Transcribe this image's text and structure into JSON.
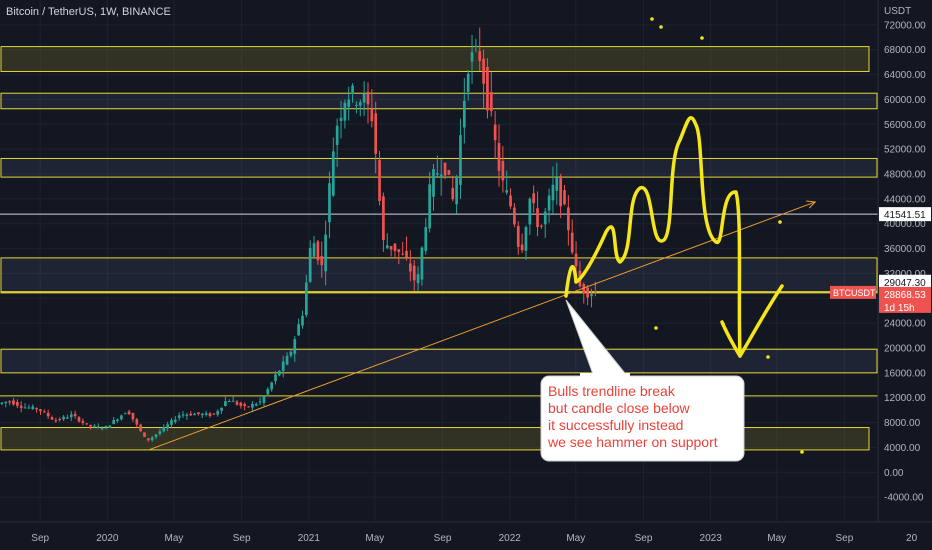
{
  "header": {
    "title": "Bitcoin / TetherUS, 1W, BINANCE"
  },
  "colors": {
    "background": "#131722",
    "grid": "#1e222d",
    "up": "#26a69a",
    "down": "#ef5350",
    "zone_line": "#e8d833",
    "trendline": "#f0a030",
    "drawing": "#f5e61b",
    "label_bg": "#ef5350",
    "callout_text": "#e8433a",
    "axis_text": "#b2b5be"
  },
  "chart_data": {
    "type": "candlestick",
    "symbol": "BTCUSDT",
    "interval": "1W",
    "y_axis": {
      "unit": "USDT",
      "range": [
        -8000,
        76000
      ],
      "ticks": [
        -4000,
        0,
        4000,
        8000,
        12000,
        16000,
        20000,
        24000,
        28000,
        32000,
        36000,
        40000,
        44000,
        48000,
        52000,
        56000,
        60000,
        64000,
        68000,
        72000
      ],
      "tick_labels": [
        "-4000.00",
        "0.00",
        "4000.00",
        "8000.00",
        "12000.00",
        "16000.00",
        "20000.00",
        "24000.00",
        "28000.00",
        "32000.00",
        "36000.00",
        "40000.00",
        "44000.00",
        "48000.00",
        "52000.00",
        "56000.00",
        "60000.00",
        "64000.00",
        "68000.00",
        "72000.00"
      ]
    },
    "x_axis": {
      "range": [
        "2019-06-20",
        "2023-11-01"
      ],
      "ticks": [
        {
          "label": "Sep",
          "date": "2019-09-01"
        },
        {
          "label": "2020",
          "date": "2020-01-01"
        },
        {
          "label": "May",
          "date": "2020-05-01"
        },
        {
          "label": "Sep",
          "date": "2020-09-01"
        },
        {
          "label": "2021",
          "date": "2021-01-01"
        },
        {
          "label": "May",
          "date": "2021-05-01"
        },
        {
          "label": "Sep",
          "date": "2021-09-01"
        },
        {
          "label": "2022",
          "date": "2022-01-01"
        },
        {
          "label": "May",
          "date": "2022-05-01"
        },
        {
          "label": "Sep",
          "date": "2022-09-01"
        },
        {
          "label": "2023",
          "date": "2023-01-01"
        },
        {
          "label": "May",
          "date": "2023-05-01"
        },
        {
          "label": "Sep",
          "date": "2023-09-01"
        },
        {
          "label": "20",
          "date": "2024-01-01"
        }
      ]
    },
    "price_path": [
      [
        "2019-06-20",
        11000
      ],
      [
        "2019-07-10",
        11500
      ],
      [
        "2019-08-05",
        10500
      ],
      [
        "2019-09-01",
        10200
      ],
      [
        "2019-10-01",
        8300
      ],
      [
        "2019-11-01",
        9200
      ],
      [
        "2019-12-01",
        7400
      ],
      [
        "2020-01-01",
        7200
      ],
      [
        "2020-02-10",
        10000
      ],
      [
        "2020-03-16",
        5000
      ],
      [
        "2020-04-15",
        7000
      ],
      [
        "2020-05-15",
        9300
      ],
      [
        "2020-06-15",
        9400
      ],
      [
        "2020-07-15",
        9200
      ],
      [
        "2020-08-10",
        11800
      ],
      [
        "2020-09-10",
        10400
      ],
      [
        "2020-10-10",
        11400
      ],
      [
        "2020-11-05",
        15500
      ],
      [
        "2020-12-01",
        19000
      ],
      [
        "2020-12-25",
        26000
      ],
      [
        "2021-01-10",
        38000
      ],
      [
        "2021-01-28",
        33000
      ],
      [
        "2021-02-21",
        55000
      ],
      [
        "2021-03-13",
        61000
      ],
      [
        "2021-04-14",
        60000
      ],
      [
        "2021-05-01",
        57000
      ],
      [
        "2021-05-19",
        37000
      ],
      [
        "2021-06-10",
        36000
      ],
      [
        "2021-07-01",
        34000
      ],
      [
        "2021-07-20",
        30000
      ],
      [
        "2021-08-15",
        47000
      ],
      [
        "2021-09-07",
        50000
      ],
      [
        "2021-09-25",
        43000
      ],
      [
        "2021-10-20",
        66000
      ],
      [
        "2021-11-10",
        67500
      ],
      [
        "2021-12-01",
        57000
      ],
      [
        "2021-12-20",
        47000
      ],
      [
        "2022-01-10",
        42000
      ],
      [
        "2022-01-24",
        35000
      ],
      [
        "2022-02-10",
        44000
      ],
      [
        "2022-03-01",
        39000
      ],
      [
        "2022-03-29",
        47000
      ],
      [
        "2022-04-20",
        40000
      ],
      [
        "2022-05-10",
        30000
      ],
      [
        "2022-05-25",
        29000
      ],
      [
        "2022-06-05",
        29000
      ]
    ],
    "zones": [
      {
        "low": 64500,
        "high": 68500,
        "boxed": true
      },
      {
        "low": 58500,
        "high": 61000
      },
      {
        "low": 47500,
        "high": 50500
      },
      {
        "low": 41541.51,
        "high": 41541.51
      },
      {
        "low": 29047.3,
        "high": 34500
      },
      {
        "low": 28868.53,
        "high": 29047.3
      },
      {
        "low": 16000,
        "high": 19800
      },
      {
        "low": 3600,
        "high": 7200,
        "boxed": true
      },
      {
        "low": 12300,
        "high": 12300
      }
    ],
    "trendline": {
      "start": [
        "2020-03-16",
        3600
      ],
      "end": [
        "2023-07-10",
        43500
      ]
    },
    "price_labels": [
      {
        "value": 41541.51,
        "text": "41541.51",
        "style": "white"
      },
      {
        "value": 29047.3,
        "text": "29047.30",
        "style": "white"
      },
      {
        "value": 28868.53,
        "text": "BTCUSDT",
        "style": "symbol"
      },
      {
        "value": 28868.53,
        "text": "28868.53",
        "style": "red"
      },
      {
        "value": 27200,
        "text": "1d 15h",
        "style": "red"
      }
    ],
    "annotation": {
      "lines": [
        "Bulls trendline break",
        "but candle close below",
        "it successfully instead",
        "we see hammer on support"
      ]
    }
  }
}
